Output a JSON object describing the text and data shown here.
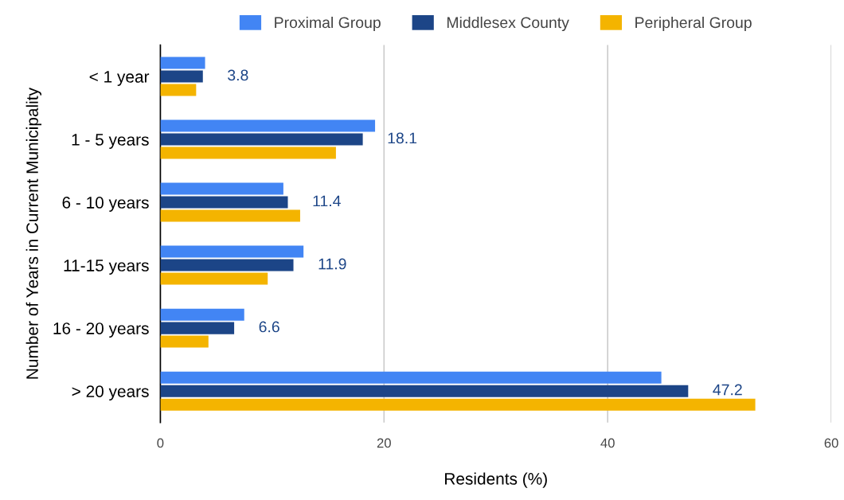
{
  "chart_data": {
    "type": "bar",
    "orientation": "horizontal",
    "xlabel": "Residents (%)",
    "ylabel": "Number of Years in Current Municipality",
    "categories": [
      "< 1 year",
      "1 - 5 years",
      "6 - 10 years",
      "11-15 years",
      "16 - 20 years",
      "> 20 years"
    ],
    "series": [
      {
        "name": "Proximal Group",
        "color": "#4285f4",
        "values": [
          4.0,
          19.2,
          11.0,
          12.8,
          7.5,
          44.8
        ]
      },
      {
        "name": "Middlesex County",
        "color": "#1c4587",
        "values": [
          3.8,
          18.1,
          11.4,
          11.9,
          6.6,
          47.2
        ],
        "value_labels": [
          "3.8",
          "18.1",
          "11.4",
          "11.9",
          "6.6",
          "47.2"
        ]
      },
      {
        "name": "Peripheral Group",
        "color": "#f4b400",
        "values": [
          3.2,
          15.7,
          12.5,
          9.6,
          4.3,
          53.2
        ]
      }
    ],
    "xlim": [
      0,
      60
    ],
    "xticks": [
      0,
      20,
      40,
      60
    ],
    "grid": "x",
    "legend": "top"
  }
}
